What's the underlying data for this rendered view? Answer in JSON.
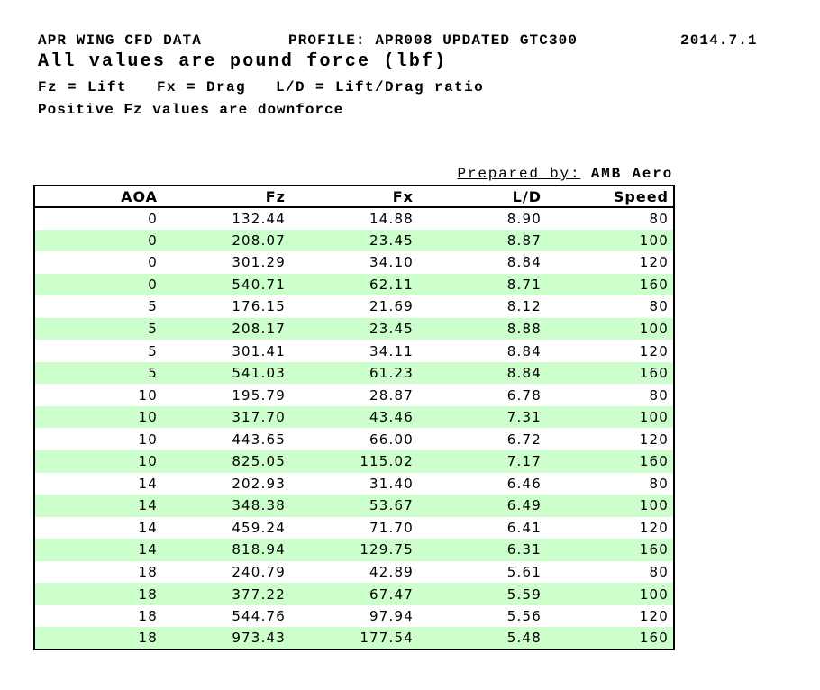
{
  "header": {
    "title": "APR WING CFD DATA",
    "profile": "PROFILE: APR008 UPDATED GTC300",
    "date": "2014.7.1",
    "units_note": "All values are pound force (lbf)",
    "legend_note": "Fz = Lift   Fx = Drag   L/D = Lift/Drag ratio",
    "sign_note": "Positive Fz values are downforce"
  },
  "prepared": {
    "label": "Prepared by:",
    "value": "AMB Aero"
  },
  "table": {
    "columns": [
      "AOA",
      "Fz",
      "Fx",
      "L/D",
      "Speed"
    ],
    "alt_row_color": "#ccffcc",
    "rows": [
      [
        "0",
        "132.44",
        "14.88",
        "8.90",
        "80"
      ],
      [
        "0",
        "208.07",
        "23.45",
        "8.87",
        "100"
      ],
      [
        "0",
        "301.29",
        "34.10",
        "8.84",
        "120"
      ],
      [
        "0",
        "540.71",
        "62.11",
        "8.71",
        "160"
      ],
      [
        "5",
        "176.15",
        "21.69",
        "8.12",
        "80"
      ],
      [
        "5",
        "208.17",
        "23.45",
        "8.88",
        "100"
      ],
      [
        "5",
        "301.41",
        "34.11",
        "8.84",
        "120"
      ],
      [
        "5",
        "541.03",
        "61.23",
        "8.84",
        "160"
      ],
      [
        "10",
        "195.79",
        "28.87",
        "6.78",
        "80"
      ],
      [
        "10",
        "317.70",
        "43.46",
        "7.31",
        "100"
      ],
      [
        "10",
        "443.65",
        "66.00",
        "6.72",
        "120"
      ],
      [
        "10",
        "825.05",
        "115.02",
        "7.17",
        "160"
      ],
      [
        "14",
        "202.93",
        "31.40",
        "6.46",
        "80"
      ],
      [
        "14",
        "348.38",
        "53.67",
        "6.49",
        "100"
      ],
      [
        "14",
        "459.24",
        "71.70",
        "6.41",
        "120"
      ],
      [
        "14",
        "818.94",
        "129.75",
        "6.31",
        "160"
      ],
      [
        "18",
        "240.79",
        "42.89",
        "5.61",
        "80"
      ],
      [
        "18",
        "377.22",
        "67.47",
        "5.59",
        "100"
      ],
      [
        "18",
        "544.76",
        "97.94",
        "5.56",
        "120"
      ],
      [
        "18",
        "973.43",
        "177.54",
        "5.48",
        "160"
      ]
    ]
  }
}
